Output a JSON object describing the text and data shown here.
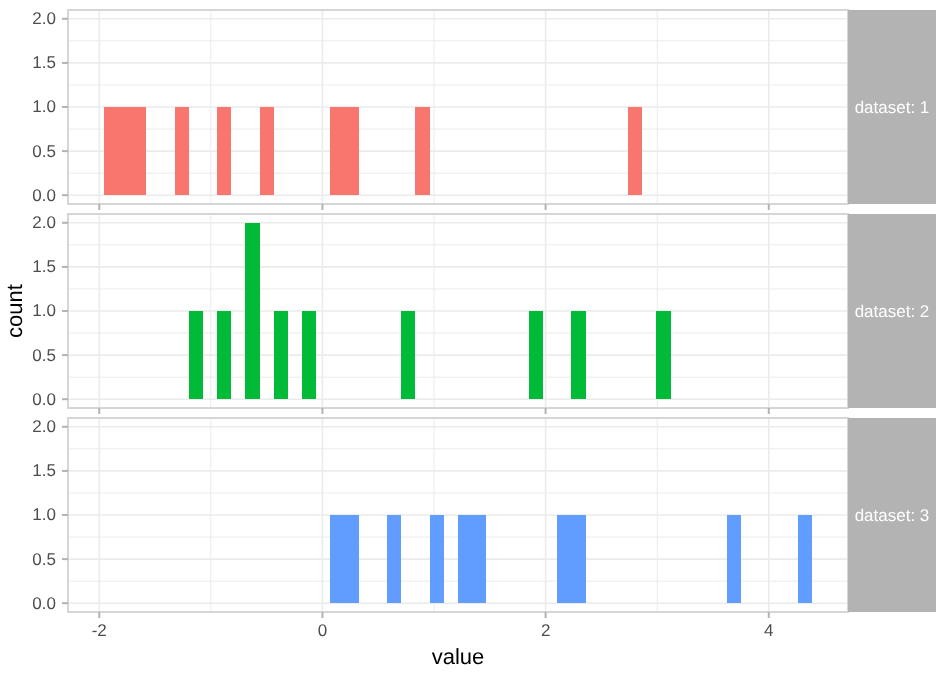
{
  "chart_data": [
    {
      "type": "histogram",
      "title": "dataset: 1",
      "color": "#f8766d",
      "bins": [
        -1.96,
        -1.833,
        -1.706,
        -1.579,
        -1.452,
        -1.325,
        -1.198,
        -1.071,
        -0.944,
        -0.817,
        -0.69,
        -0.563,
        -0.436,
        -0.309,
        -0.182,
        -0.055,
        0.072,
        0.199,
        0.326,
        0.453,
        0.58,
        0.707,
        0.834,
        0.961,
        1.088,
        1.215,
        1.342,
        1.469,
        1.596,
        1.723,
        1.85,
        1.977,
        2.104,
        2.231,
        2.358,
        2.485,
        2.612,
        2.739,
        2.866,
        2.993,
        3.12,
        3.247,
        3.374,
        3.501,
        3.628,
        3.755,
        3.882,
        4.009,
        4.136,
        4.263,
        4.39
      ],
      "values": [
        1,
        1,
        1,
        0,
        0,
        1,
        0,
        0,
        1,
        0,
        0,
        1,
        0,
        0,
        0,
        0,
        1,
        1,
        0,
        0,
        0,
        0,
        1,
        0,
        0,
        0,
        0,
        0,
        0,
        0,
        0,
        0,
        0,
        0,
        0,
        0,
        0,
        1,
        0,
        0,
        0,
        0,
        0,
        0,
        0,
        0,
        0,
        0,
        0,
        0
      ],
      "xlim": [
        -2.28,
        4.71
      ],
      "xticks": [
        -2,
        {
          "value": -1,
          "label": null
        },
        0,
        {
          "value": 1,
          "label": null
        },
        2,
        {
          "value": 3,
          "label": null
        },
        4
      ],
      "ylim": [
        -0.1,
        2.1
      ],
      "yticks": [
        {
          "value": 0,
          "label": "0.0"
        },
        {
          "value": 0.25,
          "label": null
        },
        {
          "value": 0.5,
          "label": "0.5"
        },
        {
          "value": 0.75,
          "label": null
        },
        {
          "value": 1,
          "label": "1.0"
        },
        {
          "value": 1.25,
          "label": null
        },
        {
          "value": 1.5,
          "label": "1.5"
        },
        {
          "value": 1.75,
          "label": null
        },
        {
          "value": 2,
          "label": "2.0"
        }
      ],
      "grid": true,
      "tick_labels": "y"
    },
    {
      "type": "histogram",
      "title": "dataset: 2",
      "color": "#00ba38",
      "ylabel": "count",
      "bins": [
        -1.96,
        -1.833,
        -1.706,
        -1.579,
        -1.452,
        -1.325,
        -1.198,
        -1.071,
        -0.944,
        -0.817,
        -0.69,
        -0.563,
        -0.436,
        -0.309,
        -0.182,
        -0.055,
        0.072,
        0.199,
        0.326,
        0.453,
        0.58,
        0.707,
        0.834,
        0.961,
        1.088,
        1.215,
        1.342,
        1.469,
        1.596,
        1.723,
        1.85,
        1.977,
        2.104,
        2.231,
        2.358,
        2.485,
        2.612,
        2.739,
        2.866,
        2.993,
        3.12,
        3.247,
        3.374,
        3.501,
        3.628,
        3.755,
        3.882,
        4.009,
        4.136,
        4.263,
        4.39
      ],
      "values": [
        0,
        0,
        0,
        0,
        0,
        0,
        1,
        0,
        1,
        0,
        2,
        0,
        1,
        0,
        1,
        0,
        0,
        0,
        0,
        0,
        0,
        1,
        0,
        0,
        0,
        0,
        0,
        0,
        0,
        0,
        1,
        0,
        0,
        1,
        0,
        0,
        0,
        0,
        0,
        1,
        0,
        0,
        0,
        0,
        0,
        0,
        0,
        0,
        0,
        0
      ],
      "xlim": [
        -2.28,
        4.71
      ],
      "xticks": [
        -2,
        {
          "value": -1,
          "label": null
        },
        0,
        {
          "value": 1,
          "label": null
        },
        2,
        {
          "value": 3,
          "label": null
        },
        4
      ],
      "ylim": [
        -0.1,
        2.1
      ],
      "yticks": [
        {
          "value": 0,
          "label": "0.0"
        },
        {
          "value": 0.25,
          "label": null
        },
        {
          "value": 0.5,
          "label": "0.5"
        },
        {
          "value": 0.75,
          "label": null
        },
        {
          "value": 1,
          "label": "1.0"
        },
        {
          "value": 1.25,
          "label": null
        },
        {
          "value": 1.5,
          "label": "1.5"
        },
        {
          "value": 1.75,
          "label": null
        },
        {
          "value": 2,
          "label": "2.0"
        }
      ],
      "grid": true,
      "tick_labels": "y"
    },
    {
      "type": "histogram",
      "title": "dataset: 3",
      "color": "#619cff",
      "xlabel": "value",
      "bins": [
        -1.96,
        -1.833,
        -1.706,
        -1.579,
        -1.452,
        -1.325,
        -1.198,
        -1.071,
        -0.944,
        -0.817,
        -0.69,
        -0.563,
        -0.436,
        -0.309,
        -0.182,
        -0.055,
        0.072,
        0.199,
        0.326,
        0.453,
        0.58,
        0.707,
        0.834,
        0.961,
        1.088,
        1.215,
        1.342,
        1.469,
        1.596,
        1.723,
        1.85,
        1.977,
        2.104,
        2.231,
        2.358,
        2.485,
        2.612,
        2.739,
        2.866,
        2.993,
        3.12,
        3.247,
        3.374,
        3.501,
        3.628,
        3.755,
        3.882,
        4.009,
        4.136,
        4.263,
        4.39
      ],
      "values": [
        0,
        0,
        0,
        0,
        0,
        0,
        0,
        0,
        0,
        0,
        0,
        0,
        0,
        0,
        0,
        0,
        1,
        1,
        0,
        0,
        1,
        0,
        0,
        1,
        0,
        1,
        1,
        0,
        0,
        0,
        0,
        0,
        1,
        1,
        0,
        0,
        0,
        0,
        0,
        0,
        0,
        0,
        0,
        0,
        1,
        0,
        0,
        0,
        0,
        1
      ],
      "xlim": [
        -2.28,
        4.71
      ],
      "xticks": [
        -2,
        {
          "value": -1,
          "label": null
        },
        0,
        {
          "value": 1,
          "label": null
        },
        2,
        {
          "value": 3,
          "label": null
        },
        4
      ],
      "ylim": [
        -0.1,
        2.1
      ],
      "yticks": [
        {
          "value": 0,
          "label": "0.0"
        },
        {
          "value": 0.25,
          "label": null
        },
        {
          "value": 0.5,
          "label": "0.5"
        },
        {
          "value": 0.75,
          "label": null
        },
        {
          "value": 1,
          "label": "1.0"
        },
        {
          "value": 1.25,
          "label": null
        },
        {
          "value": 1.5,
          "label": "1.5"
        },
        {
          "value": 1.75,
          "label": null
        },
        {
          "value": 2,
          "label": "2.0"
        }
      ],
      "grid": true
    }
  ]
}
